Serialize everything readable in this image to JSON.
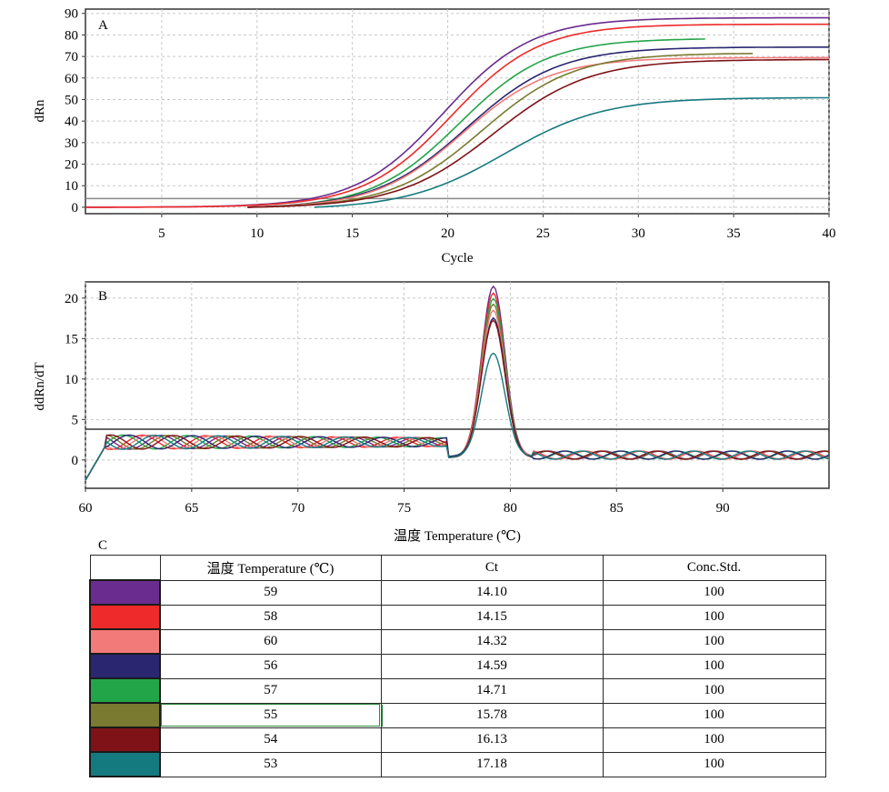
{
  "panel_a": {
    "letter": "A",
    "ylabel": "dRn",
    "xlabel": "Cycle",
    "yticks": [
      0,
      10,
      20,
      30,
      40,
      50,
      60,
      70,
      80,
      90
    ],
    "xticks": [
      5,
      10,
      15,
      20,
      25,
      30,
      35,
      40
    ],
    "threshold": 4
  },
  "panel_b": {
    "letter": "B",
    "ylabel": "ddRn/dT",
    "xlabel": "温度 Temperature (℃)",
    "yticks": [
      0,
      5,
      10,
      15,
      20
    ],
    "xticks": [
      60,
      65,
      70,
      75,
      80,
      85,
      90
    ],
    "threshold": 3.8
  },
  "table_c": {
    "letter": "C",
    "headers": [
      "",
      "温度 Temperature (℃)",
      "Ct",
      "Conc.Std."
    ],
    "rows": [
      {
        "color": "#6a2c8e",
        "temp": "59",
        "ct": "14.10",
        "conc": "100"
      },
      {
        "color": "#ee2a2a",
        "temp": "58",
        "ct": "14.15",
        "conc": "100"
      },
      {
        "color": "#f27a78",
        "temp": "60",
        "ct": "14.32",
        "conc": "100"
      },
      {
        "color": "#2a2670",
        "temp": "56",
        "ct": "14.59",
        "conc": "100"
      },
      {
        "color": "#22a548",
        "temp": "57",
        "ct": "14.71",
        "conc": "100"
      },
      {
        "color": "#7a7a30",
        "temp": "55",
        "ct": "15.78",
        "conc": "100"
      },
      {
        "color": "#7e1216",
        "temp": "54",
        "ct": "16.13",
        "conc": "100"
      },
      {
        "color": "#157a80",
        "temp": "53",
        "ct": "17.18",
        "conc": "100"
      }
    ]
  },
  "chart_data": [
    {
      "type": "line",
      "xlabel": "Cycle",
      "ylabel": "dRn",
      "xlim": [
        1,
        40
      ],
      "ylim": [
        -3,
        92
      ],
      "grid": true,
      "x_range_note": "",
      "series": [
        {
          "color": "#6a2c8e",
          "plateau": 88,
          "mid": 19.8,
          "slope": 2.3,
          "start": 1,
          "end": 40
        },
        {
          "color": "#ee2a2a",
          "plateau": 85,
          "mid": 20.2,
          "slope": 2.3,
          "start": 1,
          "end": 40
        },
        {
          "color": "#22a548",
          "plateau": 79,
          "mid": 20.6,
          "slope": 2.3,
          "start": 9.5,
          "end": 33.5
        },
        {
          "color": "#2a2670",
          "plateau": 75,
          "mid": 21.0,
          "slope": 2.4,
          "start": 9.5,
          "end": 40
        },
        {
          "color": "#f27a78",
          "plateau": 70,
          "mid": 20.8,
          "slope": 2.3,
          "start": 9.5,
          "end": 40
        },
        {
          "color": "#7a7a30",
          "plateau": 72,
          "mid": 21.8,
          "slope": 2.4,
          "start": 9.5,
          "end": 36
        },
        {
          "color": "#7e1216",
          "plateau": 69,
          "mid": 22.4,
          "slope": 2.5,
          "start": 9.5,
          "end": 40
        },
        {
          "color": "#157a80",
          "plateau": 52,
          "mid": 23.0,
          "slope": 2.6,
          "start": 13,
          "end": 40
        }
      ]
    },
    {
      "type": "line",
      "xlabel": "温度 Temperature (℃)",
      "ylabel": "ddRn/dT",
      "xlim": [
        60,
        95
      ],
      "ylim": [
        -3.5,
        22
      ],
      "grid": true,
      "peak_x": 79.2,
      "series": [
        {
          "color": "#6a2c8e",
          "peak": 21.0
        },
        {
          "color": "#ee2a2a",
          "peak": 20.3
        },
        {
          "color": "#22a548",
          "peak": 19.6
        },
        {
          "color": "#7a7a30",
          "peak": 18.8
        },
        {
          "color": "#f27a78",
          "peak": 18.2
        },
        {
          "color": "#2a2670",
          "peak": 17.2
        },
        {
          "color": "#7e1216",
          "peak": 16.8
        },
        {
          "color": "#157a80",
          "peak": 12.9
        }
      ]
    }
  ]
}
